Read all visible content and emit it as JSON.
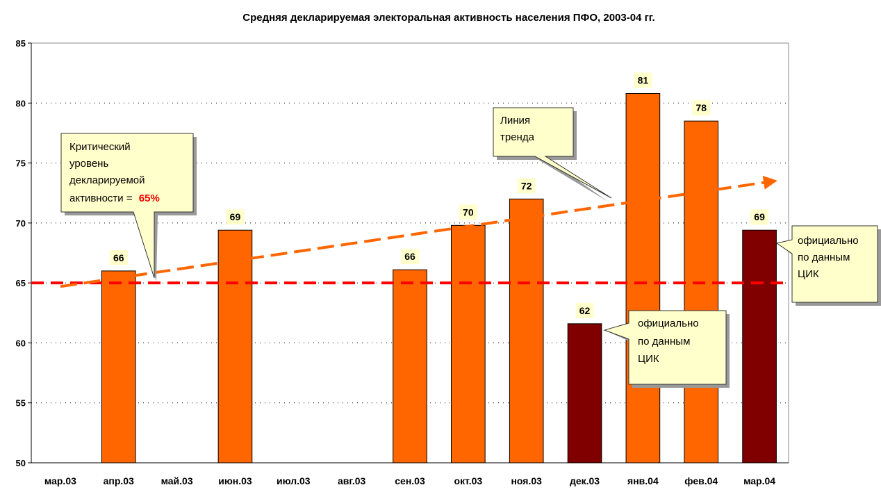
{
  "chart_data": {
    "type": "bar",
    "title": "Средняя декларируемая электоральная активность населения ПФО, 2003-04 гг.",
    "categories": [
      "мар.03",
      "апр.03",
      "май.03",
      "июн.03",
      "июл.03",
      "авг.03",
      "сен.03",
      "окт.03",
      "ноя.03",
      "дек.03",
      "янв.04",
      "фев.04",
      "мар.04"
    ],
    "values": [
      null,
      66,
      null,
      69.4,
      null,
      null,
      66.1,
      69.8,
      72,
      61.6,
      80.8,
      78.5,
      69.4
    ],
    "value_labels": [
      null,
      "66",
      null,
      "69",
      null,
      null,
      "66",
      "70",
      "72",
      "62",
      "81",
      "78",
      "69"
    ],
    "colors": [
      "#ff6600",
      "#ff6600",
      "#ff6600",
      "#ff6600",
      "#ff6600",
      "#ff6600",
      "#ff6600",
      "#ff6600",
      "#ff6600",
      "#800000",
      "#ff6600",
      "#ff6600",
      "#800000"
    ],
    "ylim": [
      50,
      85
    ],
    "yticks": [
      50,
      55,
      60,
      65,
      70,
      75,
      80,
      85
    ],
    "grid": true,
    "reference_line": {
      "value": 65,
      "color": "#ff0000"
    },
    "trend": {
      "values": [
        64.7,
        73.4
      ],
      "color": "#ff6600"
    },
    "annotations": [
      {
        "lines": [
          "Критический",
          "уровень",
          "декларируемой",
          "активности ="
        ],
        "highlight": "65%"
      },
      {
        "lines": [
          "Линия",
          "тренда"
        ]
      },
      {
        "lines": [
          "официально",
          "по данным",
          "ЦИК"
        ]
      },
      {
        "lines": [
          "официально",
          "по данным",
          "ЦИК"
        ]
      }
    ]
  }
}
